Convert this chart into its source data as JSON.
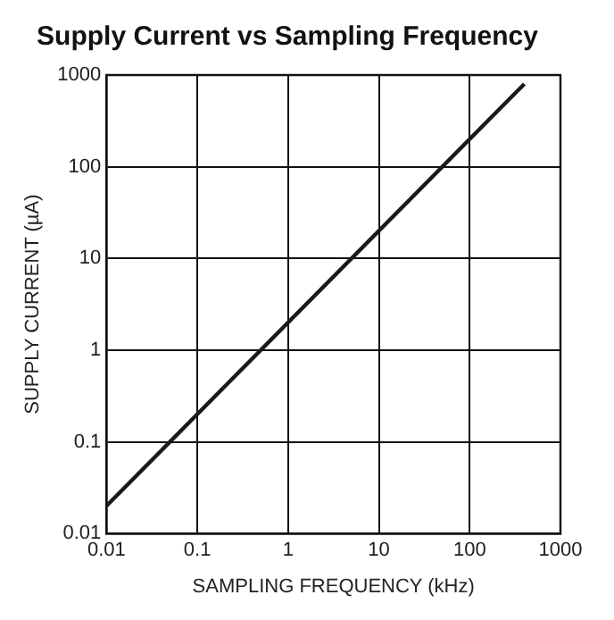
{
  "chart_data": {
    "type": "line",
    "title": "Supply Current vs Sampling Frequency",
    "xlabel": "SAMPLING FREQUENCY (kHz)",
    "ylabel": "SUPPLY CURRENT (µA)",
    "log": "xy",
    "grid": true,
    "marker": "none",
    "line_style": "solid",
    "xlim": [
      0.01,
      1000
    ],
    "ylim": [
      0.01,
      1000
    ],
    "xticks": [
      0.01,
      0.1,
      1,
      10,
      100,
      1000
    ],
    "yticks": [
      0.01,
      0.1,
      1,
      10,
      100,
      1000
    ],
    "series": [
      {
        "color": "#1a1a1a",
        "x": [
          0.01,
          400
        ],
        "values": [
          0.02,
          800
        ]
      }
    ]
  }
}
